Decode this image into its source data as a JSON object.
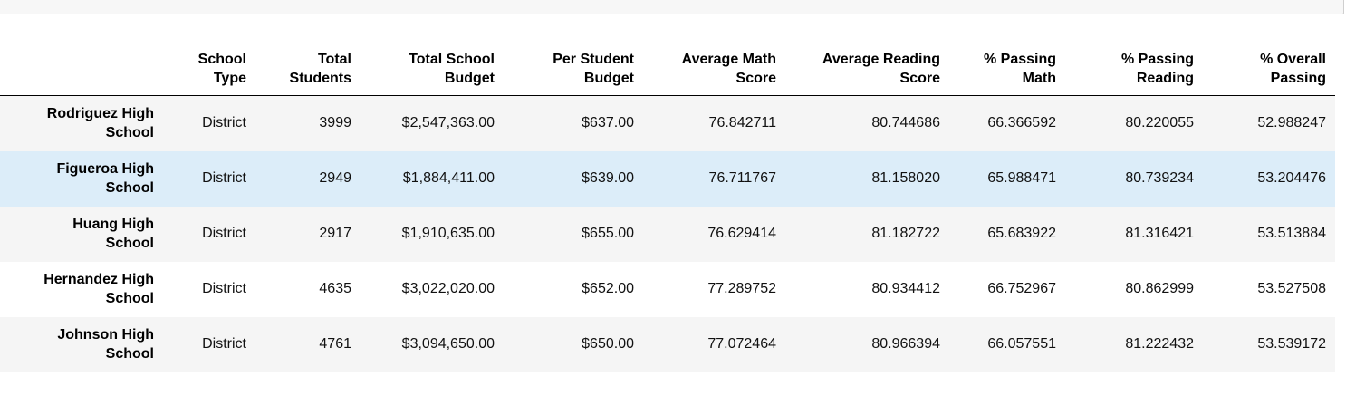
{
  "table": {
    "columns": [
      "School Type",
      "Total Students",
      "Total School Budget",
      "Per Student Budget",
      "Average Math Score",
      "Average Reading Score",
      "% Passing Math",
      "% Passing Reading",
      "% Overall Passing"
    ],
    "index": [
      "Rodriguez High School",
      "Figueroa High School",
      "Huang High School",
      "Hernandez High School",
      "Johnson High School"
    ],
    "rows": [
      [
        "District",
        "3999",
        "$2,547,363.00",
        "$637.00",
        "76.842711",
        "80.744686",
        "66.366592",
        "80.220055",
        "52.988247"
      ],
      [
        "District",
        "2949",
        "$1,884,411.00",
        "$639.00",
        "76.711767",
        "81.158020",
        "65.988471",
        "80.739234",
        "53.204476"
      ],
      [
        "District",
        "2917",
        "$1,910,635.00",
        "$655.00",
        "76.629414",
        "81.182722",
        "65.683922",
        "81.316421",
        "53.513884"
      ],
      [
        "District",
        "4635",
        "$3,022,020.00",
        "$652.00",
        "77.289752",
        "80.934412",
        "66.752967",
        "80.862999",
        "53.527508"
      ],
      [
        "District",
        "4761",
        "$3,094,650.00",
        "$650.00",
        "77.072464",
        "80.966394",
        "66.057551",
        "81.222432",
        "53.539172"
      ]
    ]
  }
}
